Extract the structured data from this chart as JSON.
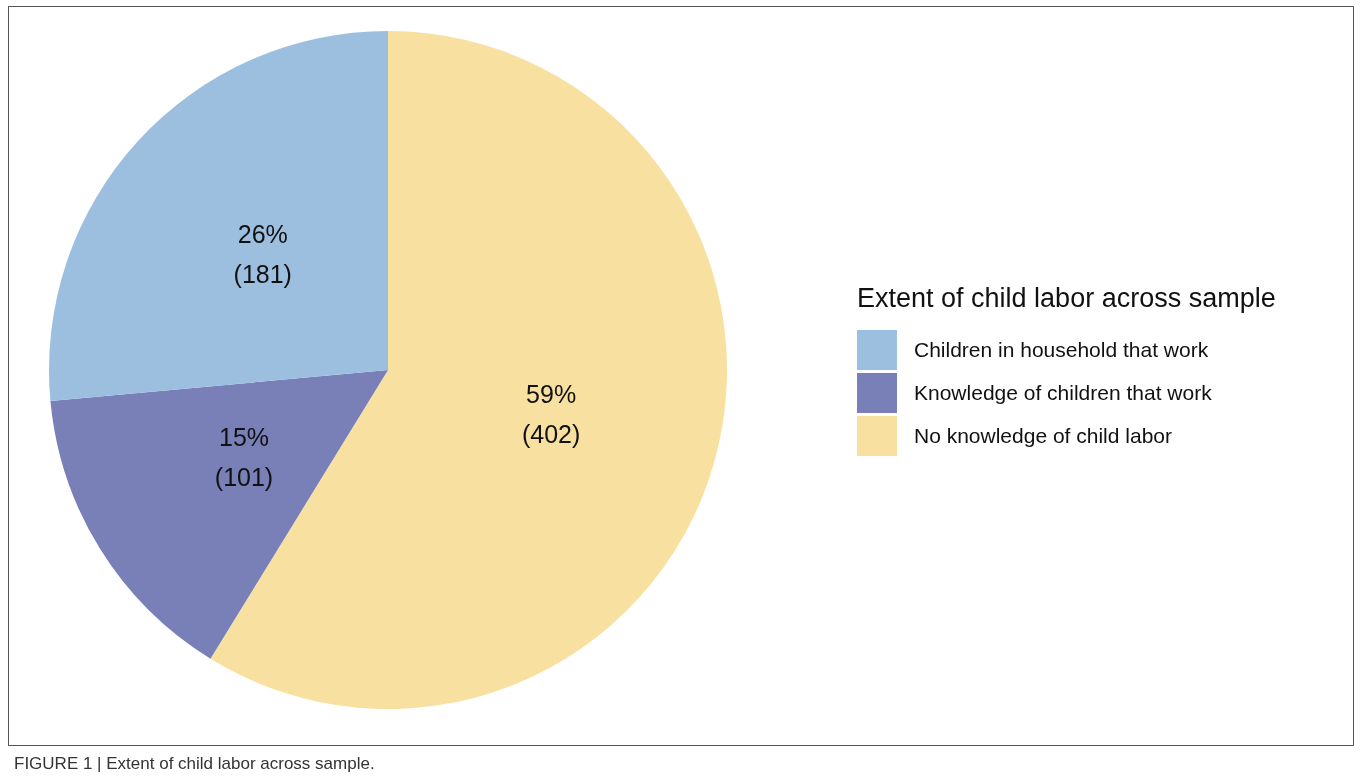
{
  "chart_data": {
    "type": "pie",
    "categories": [
      "Children in household that work",
      "Knowledge of children that work",
      "No knowledge of child labor"
    ],
    "values": [
      181,
      101,
      402
    ],
    "colors": [
      "#9dbfdf",
      "#7980b8",
      "#f8e1a0"
    ],
    "value_labels": [
      "26%\n(181)",
      "15%\n(101)",
      "59%\n(402)"
    ],
    "legend_title": "Extent of child labor across sample",
    "legend": "right",
    "annotations": [
      "FIGURE 1 | Extent of child labor across sample."
    ]
  }
}
